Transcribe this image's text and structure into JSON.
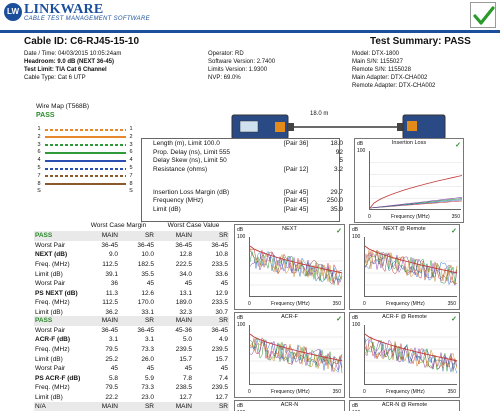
{
  "header": {
    "logo_badge": "LW",
    "logo_name": "LINKWARE",
    "logo_sub": "CABLE TEST MANAGEMENT SOFTWARE",
    "cable_id": "Cable ID: C6-RJ45-15-10",
    "test_summary": "Test Summary: PASS",
    "info": [
      {
        "label": "Date / Time: 04/03/2015 10:05:24am"
      },
      {
        "label": "Headroom: 9.0 dB (NEXT 36-45)"
      },
      {
        "label": "Test Limit: TIA Cat 6 Channel"
      },
      {
        "label": "Cable Type: Cat 6 UTP"
      },
      {
        "label": "Operator: RD"
      },
      {
        "label": "Software Version: 2.7400"
      },
      {
        "label": "Limits Version: 1.9300"
      },
      {
        "label": "NVP: 69.0%"
      },
      {
        "label": "Model: DTX-1800"
      },
      {
        "label": "Main S/N: 1155027"
      },
      {
        "label": "Remote S/N: 1155028"
      },
      {
        "label": "Main Adapter: DTX-CHA002"
      },
      {
        "label": "Remote Adapter: DTX-CHA002"
      }
    ]
  },
  "wiremap": {
    "title": "Wire Map (T568B)",
    "status": "PASS",
    "left_pins": [
      "1",
      "2",
      "3",
      "6",
      "4",
      "5",
      "7",
      "8",
      "S"
    ],
    "right_pins": [
      "1",
      "2",
      "3",
      "6",
      "4",
      "5",
      "7",
      "8",
      "S"
    ],
    "colors": {
      "orange": "#e8862c",
      "green": "#2e9a3a",
      "blue": "#2a4fb0",
      "brown": "#8a5a2c",
      "shield": "#666666"
    }
  },
  "link_length": "18.0 m",
  "measurements": [
    {
      "label": "Length (m), Limit 100.0",
      "pair": "[Pair 36]",
      "value": "18.0"
    },
    {
      "label": "Prop. Delay (ns), Limit 555",
      "pair": "",
      "value": "92"
    },
    {
      "label": "Delay Skew (ns), Limit 50",
      "pair": "",
      "value": "5"
    },
    {
      "label": "Resistance (ohms)",
      "pair": "[Pair 12]",
      "value": "3.2"
    },
    {
      "label": "Insertion Loss Margin (dB)",
      "pair": "[Pair 45]",
      "value": "29.7"
    },
    {
      "label": "Frequency (MHz)",
      "pair": "[Pair 45]",
      "value": "250.0"
    },
    {
      "label": "Limit (dB)",
      "pair": "[Pair 45]",
      "value": "35.9"
    }
  ],
  "results": {
    "group_margin": "Worst Case Margin",
    "group_value": "Worst Case Value",
    "blocks": [
      {
        "rows": [
          [
            "PASS",
            "MAIN",
            "SR",
            "MAIN",
            "SR"
          ],
          [
            "Worst Pair",
            "36-45",
            "36-45",
            "36-45",
            "36-45"
          ],
          [
            "NEXT (dB)",
            "9.0",
            "10.0",
            "12.8",
            "10.8"
          ],
          [
            "Freq. (MHz)",
            "112.5",
            "182.5",
            "222.5",
            "233.5"
          ],
          [
            "Limit (dB)",
            "39.1",
            "35.5",
            "34.0",
            "33.6"
          ],
          [
            "Worst Pair",
            "36",
            "45",
            "45",
            "45"
          ],
          [
            "PS NEXT (dB)",
            "11.3",
            "12.6",
            "13.1",
            "12.9"
          ],
          [
            "Freq. (MHz)",
            "112.5",
            "170.0",
            "189.0",
            "233.5"
          ],
          [
            "Limit (dB)",
            "36.2",
            "33.1",
            "32.3",
            "30.7"
          ]
        ]
      },
      {
        "rows": [
          [
            "PASS",
            "MAIN",
            "SR",
            "MAIN",
            "SR"
          ],
          [
            "Worst Pair",
            "36-45",
            "36-45",
            "45-36",
            "36-45"
          ],
          [
            "ACR-F (dB)",
            "3.1",
            "3.1",
            "5.0",
            "4.9"
          ],
          [
            "Freq. (MHz)",
            "79.5",
            "73.3",
            "239.5",
            "239.5"
          ],
          [
            "Limit (dB)",
            "25.2",
            "26.0",
            "15.7",
            "15.7"
          ],
          [
            "Worst Pair",
            "45",
            "45",
            "45",
            "45"
          ],
          [
            "PS ACR-F (dB)",
            "5.8",
            "5.9",
            "7.8",
            "7.4"
          ],
          [
            "Freq. (MHz)",
            "79.5",
            "73.3",
            "238.5",
            "239.5"
          ],
          [
            "Limit (dB)",
            "22.2",
            "23.0",
            "12.7",
            "12.7"
          ]
        ]
      },
      {
        "rows": [
          [
            "N/A",
            "MAIN",
            "SR",
            "MAIN",
            "SR"
          ]
        ]
      }
    ]
  },
  "charts": [
    {
      "title": "Insertion Loss",
      "y_label": "dB",
      "y_ticks": [
        "100",
        "",
        "",
        "",
        "0"
      ],
      "x_ticks": [
        "0",
        "350"
      ],
      "x_label": "Frequency (MHz)"
    },
    {
      "title": "NEXT",
      "y_label": "dB",
      "y_ticks": [
        "100",
        "",
        "",
        "",
        "0"
      ],
      "x_ticks": [
        "0",
        "350"
      ],
      "x_label": "Frequency (MHz)"
    },
    {
      "title": "NEXT @ Remote",
      "y_label": "dB",
      "y_ticks": [
        "100",
        "",
        "",
        "",
        "0"
      ],
      "x_ticks": [
        "0",
        "350"
      ],
      "x_label": "Frequency (MHz)"
    },
    {
      "title": "ACR-F",
      "y_label": "dB",
      "y_ticks": [
        "100",
        "",
        "",
        "",
        "0"
      ],
      "x_ticks": [
        "0",
        "350"
      ],
      "x_label": "Frequency (MHz)"
    },
    {
      "title": "ACR-F @ Remote",
      "y_label": "dB",
      "y_ticks": [
        "100",
        "",
        "",
        "",
        "0"
      ],
      "x_ticks": [
        "0",
        "350"
      ],
      "x_label": "Frequency (MHz)"
    },
    {
      "title": "ACR-N",
      "y_label": "dB",
      "y_ticks": [
        "100"
      ],
      "x_ticks": [],
      "x_label": ""
    },
    {
      "title": "ACR-N @ Remote",
      "y_label": "dB",
      "y_ticks": [
        "100"
      ],
      "x_ticks": [],
      "x_label": ""
    }
  ]
}
